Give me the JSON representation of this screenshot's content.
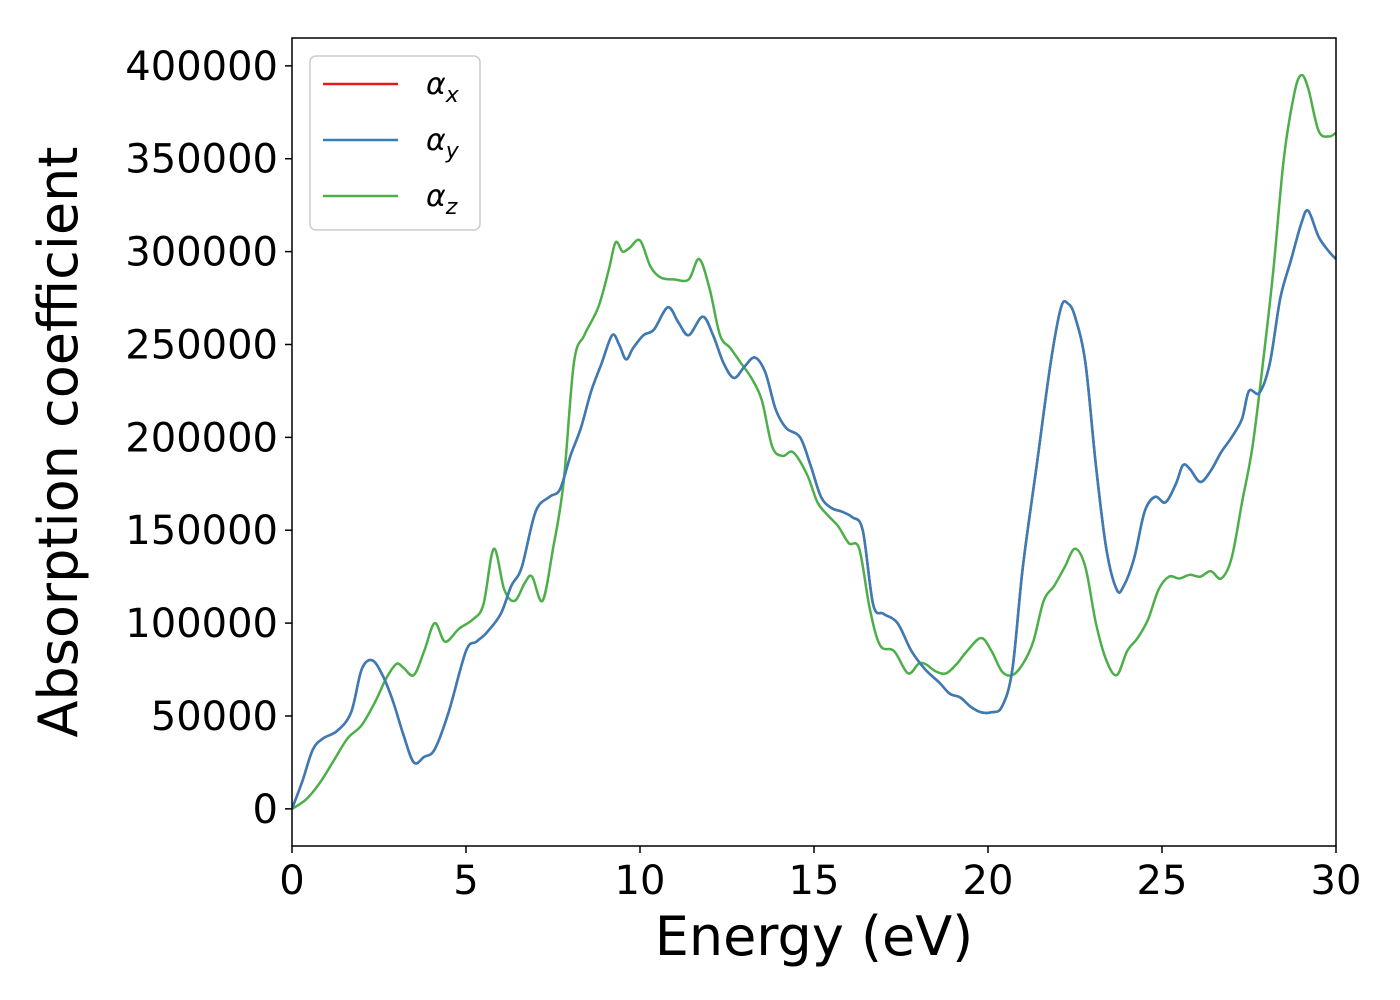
{
  "chart_data": {
    "type": "line",
    "title": "",
    "xlabel": "Energy (eV)",
    "ylabel": "Absorption coefficient",
    "xlim": [
      0,
      30
    ],
    "ylim": [
      -20000,
      415000
    ],
    "xticks": [
      0,
      5,
      10,
      15,
      20,
      25,
      30
    ],
    "yticks": [
      0,
      50000,
      100000,
      150000,
      200000,
      250000,
      300000,
      350000,
      400000
    ],
    "grid": false,
    "legend_position": "top-left",
    "series": [
      {
        "name": "α",
        "subscript": "x",
        "color": "#e41a1c",
        "x": [
          0,
          0.3,
          0.6,
          0.9,
          1.3,
          1.7,
          2.0,
          2.3,
          2.6,
          2.9,
          3.2,
          3.5,
          3.8,
          4.1,
          4.5,
          5.0,
          5.3,
          5.6,
          6.0,
          6.3,
          6.6,
          7.0,
          7.4,
          7.7,
          8.0,
          8.3,
          8.6,
          8.9,
          9.2,
          9.4,
          9.6,
          9.8,
          10.1,
          10.4,
          10.8,
          11.1,
          11.4,
          11.8,
          12.1,
          12.4,
          12.7,
          13.0,
          13.3,
          13.6,
          13.9,
          14.2,
          14.6,
          14.9,
          15.2,
          15.5,
          15.8,
          16.1,
          16.4,
          16.7,
          17.0,
          17.4,
          17.8,
          18.2,
          18.6,
          18.9,
          19.2,
          19.5,
          19.8,
          20.1,
          20.4,
          20.7,
          21.0,
          21.4,
          21.8,
          22.1,
          22.3,
          22.5,
          22.8,
          23.1,
          23.4,
          23.7,
          23.9,
          24.2,
          24.5,
          24.8,
          25.1,
          25.4,
          25.6,
          25.8,
          26.1,
          26.4,
          26.7,
          27.0,
          27.3,
          27.5,
          27.8,
          28.1,
          28.4,
          28.7,
          29.0,
          29.2,
          29.5,
          29.8,
          30.0
        ],
        "y": [
          0,
          15000,
          32000,
          38000,
          42000,
          52000,
          75000,
          80000,
          72000,
          58000,
          40000,
          25000,
          28000,
          32000,
          52000,
          85000,
          90000,
          95000,
          105000,
          120000,
          130000,
          160000,
          168000,
          172000,
          190000,
          205000,
          225000,
          240000,
          255000,
          250000,
          242000,
          248000,
          255000,
          258000,
          270000,
          262000,
          255000,
          265000,
          255000,
          240000,
          232000,
          238000,
          243000,
          235000,
          215000,
          205000,
          200000,
          185000,
          168000,
          162000,
          160000,
          157000,
          150000,
          110000,
          105000,
          100000,
          85000,
          75000,
          68000,
          62000,
          60000,
          55000,
          52000,
          52000,
          55000,
          75000,
          130000,
          185000,
          240000,
          270000,
          272000,
          265000,
          240000,
          185000,
          140000,
          118000,
          120000,
          135000,
          160000,
          168000,
          165000,
          175000,
          185000,
          183000,
          176000,
          182000,
          192000,
          200000,
          210000,
          225000,
          224000,
          240000,
          275000,
          295000,
          315000,
          322000,
          308000,
          300000,
          296000
        ]
      },
      {
        "name": "α",
        "subscript": "y",
        "color": "#377eb8",
        "x": [
          0,
          0.3,
          0.6,
          0.9,
          1.3,
          1.7,
          2.0,
          2.3,
          2.6,
          2.9,
          3.2,
          3.5,
          3.8,
          4.1,
          4.5,
          5.0,
          5.3,
          5.6,
          6.0,
          6.3,
          6.6,
          7.0,
          7.4,
          7.7,
          8.0,
          8.3,
          8.6,
          8.9,
          9.2,
          9.4,
          9.6,
          9.8,
          10.1,
          10.4,
          10.8,
          11.1,
          11.4,
          11.8,
          12.1,
          12.4,
          12.7,
          13.0,
          13.3,
          13.6,
          13.9,
          14.2,
          14.6,
          14.9,
          15.2,
          15.5,
          15.8,
          16.1,
          16.4,
          16.7,
          17.0,
          17.4,
          17.8,
          18.2,
          18.6,
          18.9,
          19.2,
          19.5,
          19.8,
          20.1,
          20.4,
          20.7,
          21.0,
          21.4,
          21.8,
          22.1,
          22.3,
          22.5,
          22.8,
          23.1,
          23.4,
          23.7,
          23.9,
          24.2,
          24.5,
          24.8,
          25.1,
          25.4,
          25.6,
          25.8,
          26.1,
          26.4,
          26.7,
          27.0,
          27.3,
          27.5,
          27.8,
          28.1,
          28.4,
          28.7,
          29.0,
          29.2,
          29.5,
          29.8,
          30.0
        ],
        "y": [
          0,
          15000,
          32000,
          38000,
          42000,
          52000,
          75000,
          80000,
          72000,
          58000,
          40000,
          25000,
          28000,
          32000,
          52000,
          85000,
          90000,
          95000,
          105000,
          120000,
          130000,
          160000,
          168000,
          172000,
          190000,
          205000,
          225000,
          240000,
          255000,
          250000,
          242000,
          248000,
          255000,
          258000,
          270000,
          262000,
          255000,
          265000,
          255000,
          240000,
          232000,
          238000,
          243000,
          235000,
          215000,
          205000,
          200000,
          185000,
          168000,
          162000,
          160000,
          157000,
          150000,
          110000,
          105000,
          100000,
          85000,
          75000,
          68000,
          62000,
          60000,
          55000,
          52000,
          52000,
          55000,
          75000,
          130000,
          185000,
          240000,
          270000,
          272000,
          265000,
          240000,
          185000,
          140000,
          118000,
          120000,
          135000,
          160000,
          168000,
          165000,
          175000,
          185000,
          183000,
          176000,
          182000,
          192000,
          200000,
          210000,
          225000,
          224000,
          240000,
          275000,
          295000,
          315000,
          322000,
          308000,
          300000,
          296000
        ]
      },
      {
        "name": "α",
        "subscript": "z",
        "color": "#4daf4a",
        "x": [
          0,
          0.4,
          0.8,
          1.2,
          1.6,
          2.0,
          2.4,
          2.7,
          3.0,
          3.2,
          3.5,
          3.8,
          4.1,
          4.4,
          4.8,
          5.2,
          5.5,
          5.8,
          6.1,
          6.4,
          6.7,
          6.9,
          7.2,
          7.5,
          7.8,
          8.1,
          8.4,
          8.8,
          9.1,
          9.3,
          9.5,
          9.7,
          10.0,
          10.3,
          10.6,
          11.0,
          11.4,
          11.7,
          12.0,
          12.3,
          12.6,
          12.9,
          13.2,
          13.5,
          13.8,
          14.1,
          14.4,
          14.8,
          15.1,
          15.4,
          15.7,
          16.0,
          16.3,
          16.6,
          16.9,
          17.3,
          17.7,
          18.0,
          18.2,
          18.5,
          18.8,
          19.1,
          19.4,
          19.8,
          20.1,
          20.4,
          20.7,
          21.0,
          21.3,
          21.6,
          21.9,
          22.2,
          22.5,
          22.8,
          23.1,
          23.4,
          23.7,
          24.0,
          24.3,
          24.6,
          24.9,
          25.2,
          25.5,
          25.8,
          26.1,
          26.4,
          26.7,
          27.0,
          27.3,
          27.6,
          27.9,
          28.2,
          28.5,
          28.8,
          29.0,
          29.2,
          29.5,
          29.8,
          30.0
        ],
        "y": [
          0,
          5000,
          14000,
          26000,
          38000,
          45000,
          58000,
          70000,
          78000,
          76000,
          72000,
          85000,
          100000,
          90000,
          97000,
          102000,
          110000,
          140000,
          118000,
          112000,
          122000,
          125000,
          112000,
          140000,
          175000,
          240000,
          255000,
          270000,
          290000,
          305000,
          300000,
          302000,
          306000,
          292000,
          286000,
          285000,
          285000,
          296000,
          280000,
          255000,
          248000,
          240000,
          232000,
          220000,
          195000,
          190000,
          192000,
          180000,
          165000,
          158000,
          152000,
          143000,
          140000,
          108000,
          88000,
          85000,
          73000,
          78000,
          78000,
          74000,
          73000,
          78000,
          85000,
          92000,
          85000,
          74000,
          72000,
          78000,
          90000,
          112000,
          120000,
          130000,
          140000,
          130000,
          100000,
          80000,
          72000,
          85000,
          92000,
          102000,
          118000,
          125000,
          124000,
          126000,
          125000,
          128000,
          124000,
          135000,
          165000,
          195000,
          240000,
          290000,
          350000,
          385000,
          395000,
          388000,
          365000,
          362000,
          364000
        ]
      }
    ]
  }
}
